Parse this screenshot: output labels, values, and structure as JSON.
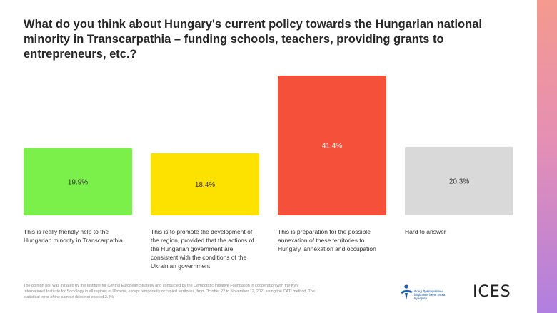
{
  "title": "What do you think about Hungary's current policy towards the Hungarian national minority in Transcarpathia – funding schools, teachers, providing grants to entrepreneurs, etc.?",
  "chart_data": {
    "type": "bar",
    "title": "What do you think about Hungary's current policy towards the Hungarian national minority in Transcarpathia – funding schools, teachers, providing grants to entrepreneurs, etc.?",
    "categories": [
      "This is really friendly help to the Hungarian minority in Transcarpathia",
      "This is to promote the development of the region, provided that the actions of the Hungarian government are consistent with the conditions of the Ukrainian government",
      "This is preparation for the possible annexation of these territories to Hungary, annexation and occupation",
      "Hard to answer"
    ],
    "values": [
      19.9,
      18.4,
      41.4,
      20.3
    ],
    "value_labels": [
      "19.9%",
      "18.4%",
      "41.4%",
      "20.3%"
    ],
    "colors": [
      "#7cf04a",
      "#fde200",
      "#f4503a",
      "#d9d9d9"
    ],
    "xlabel": "",
    "ylabel": "",
    "ylim": [
      0,
      41.4
    ],
    "grid": false,
    "legend": "none"
  },
  "footnote": "The opinion poll was initiated by the Institute for Central European Strategy and conducted by the Democratic Initiative Foundation in cooperation with the Kyiv International Institute for Sociology in all regions of Ukraine, except temporarily occupied territories, from October 22 to November 12, 2021 using the CATI method. The statistical error of the sample does not exceed 2.4%",
  "logos": {
    "dif_text": "Фонд Демократичні ініціативи імені Ілька Кучеріва",
    "ices_text": "ICES"
  }
}
